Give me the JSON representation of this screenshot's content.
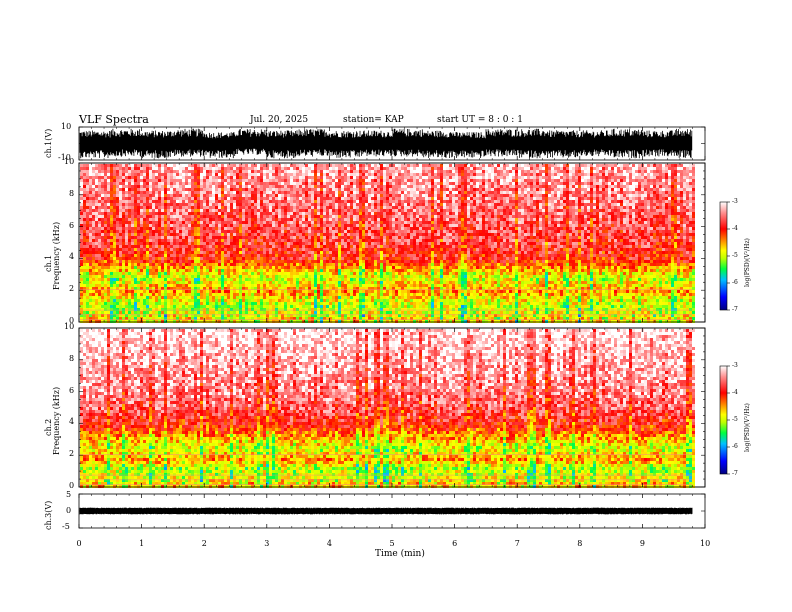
{
  "header": {
    "title": "VLF Spectra",
    "date": "Jul. 20, 2025",
    "station": "station= KAP",
    "start_ut": "start UT =  8 : 0 : 1"
  },
  "panels": {
    "ch1_wave": {
      "ylabel": "ch.1(V)",
      "ticks": [
        "10",
        "-10"
      ]
    },
    "ch1_spec": {
      "ylabel_top": "ch.1",
      "ylabel_bottom": "Frequency (kHz)"
    },
    "ch2_spec": {
      "ylabel_top": "ch.2",
      "ylabel_bottom": "Frequency (kHz)"
    },
    "ch3_wave": {
      "ylabel": "ch.3(V)",
      "ticks": [
        "5",
        "0",
        "-5"
      ]
    }
  },
  "colorbar": {
    "label": "log(PSD)(V²/Hz)",
    "ticks": [
      "-3",
      "-4",
      "-5",
      "-6",
      "-7"
    ],
    "colors": [
      "#000080",
      "#0000ff",
      "#00c0ff",
      "#00ff40",
      "#c0ff00",
      "#ffff00",
      "#ff8000",
      "#ff0000",
      "#ff9090",
      "#ffffff"
    ]
  },
  "xaxis": {
    "label": "Time (min)"
  },
  "chart_data": [
    {
      "type": "line",
      "name": "ch.1 waveform",
      "ylabel": "ch.1(V)",
      "ylim": [
        -10,
        10
      ],
      "xlim": [
        0,
        10
      ],
      "x": [
        0,
        0.5,
        1,
        1.5,
        2,
        2.5,
        3,
        3.5,
        4,
        4.5,
        5,
        5.5,
        6,
        6.5,
        7,
        7.5,
        8,
        8.5,
        9,
        9.5,
        9.8
      ],
      "y_max": [
        8,
        9,
        8,
        9,
        7,
        9,
        8,
        9,
        8,
        8,
        9,
        8,
        7,
        9,
        9,
        8,
        8,
        9,
        8,
        9,
        8
      ],
      "y_min": [
        -9,
        -8,
        -9,
        -8,
        -9,
        -7,
        -9,
        -8,
        -9,
        -8,
        -8,
        -9,
        -9,
        -8,
        -9,
        -9,
        -8,
        -9,
        -8,
        -9,
        -8
      ]
    },
    {
      "type": "heatmap",
      "name": "ch.1 spectrogram",
      "ylabel": "Frequency (kHz)",
      "xlim": [
        0,
        10
      ],
      "ylim": [
        0,
        10
      ],
      "yticks": [
        0,
        2,
        4,
        6,
        8,
        10
      ],
      "data_end_min": 9.8,
      "color_scale": [
        -7,
        -3
      ],
      "freq_kHz": [
        0.3,
        1.0,
        1.5,
        2.0,
        2.8,
        3.3,
        4.0,
        5.0,
        6.0,
        8.0,
        10.0
      ],
      "typical_log_psd": [
        -4.6,
        -5.0,
        -4.8,
        -4.4,
        -4.9,
        -4.6,
        -3.9,
        -3.7,
        -3.6,
        -3.4,
        -3.2
      ]
    },
    {
      "type": "heatmap",
      "name": "ch.2 spectrogram",
      "ylabel": "Frequency (kHz)",
      "xlim": [
        0,
        10
      ],
      "ylim": [
        0,
        10
      ],
      "yticks": [
        0,
        2,
        4,
        6,
        8,
        10
      ],
      "data_end_min": 9.8,
      "color_scale": [
        -7,
        -3
      ],
      "freq_kHz": [
        0.3,
        0.8,
        1.3,
        1.8,
        2.5,
        3.0,
        4.0,
        5.0,
        6.0,
        8.0,
        10.0
      ],
      "typical_log_psd": [
        -4.5,
        -4.9,
        -5.0,
        -4.4,
        -4.9,
        -4.6,
        -3.9,
        -3.6,
        -3.4,
        -3.2,
        -3.0
      ]
    },
    {
      "type": "line",
      "name": "ch.3 waveform",
      "ylabel": "ch.3(V)",
      "ylim": [
        -5,
        5
      ],
      "xlim": [
        0,
        10
      ],
      "x": [
        0,
        9.8
      ],
      "y_max": [
        1,
        1
      ],
      "y_min": [
        -1,
        -1
      ]
    }
  ],
  "xticks": [
    0,
    1,
    2,
    3,
    4,
    5,
    6,
    7,
    8,
    9,
    10
  ]
}
